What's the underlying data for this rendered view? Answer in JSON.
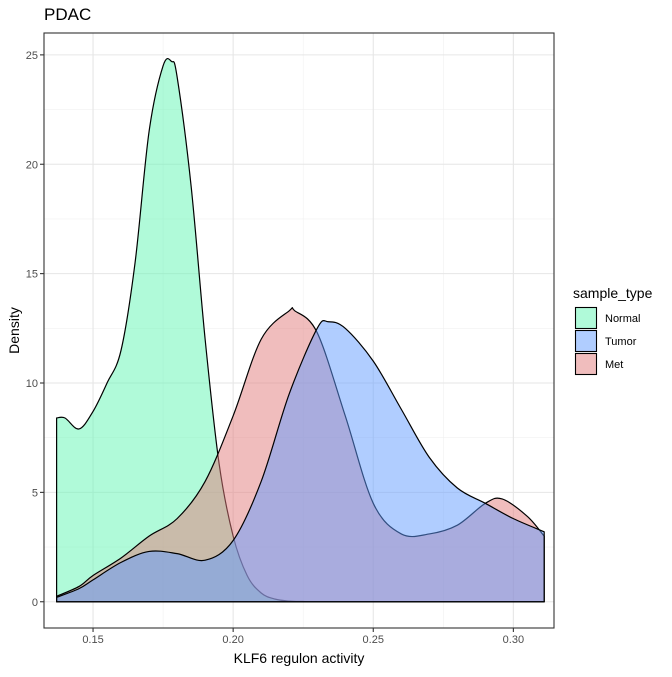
{
  "chart_data": {
    "type": "area",
    "title": "PDAC",
    "xlabel": "KLF6 regulon activity",
    "ylabel": "Density",
    "xlim": [
      0.1325,
      0.3145
    ],
    "ylim": [
      -1.2,
      26.0
    ],
    "x_ticks": [
      0.15,
      0.2,
      0.25,
      0.3
    ],
    "x_tick_labels": [
      "0.15",
      "0.20",
      "0.25",
      "0.30"
    ],
    "y_ticks": [
      0,
      5,
      10,
      15,
      20,
      25
    ],
    "y_tick_labels": [
      "0",
      "5",
      "10",
      "15",
      "20",
      "25"
    ],
    "grid": true,
    "legend": {
      "title": "sample_type",
      "position": "right"
    },
    "series": [
      {
        "name": "Normal",
        "color": "#61F5B4",
        "x": [
          0.137,
          0.14,
          0.145,
          0.15,
          0.155,
          0.16,
          0.165,
          0.17,
          0.175,
          0.178,
          0.18,
          0.185,
          0.19,
          0.195,
          0.2,
          0.205,
          0.21,
          0.215,
          0.22,
          0.225,
          0.23,
          0.24,
          0.25,
          0.311
        ],
        "y": [
          8.4,
          8.4,
          7.9,
          8.7,
          10.0,
          11.5,
          15.5,
          21.5,
          24.5,
          24.7,
          24.0,
          19.0,
          12.0,
          6.3,
          3.0,
          1.2,
          0.4,
          0.12,
          0.03,
          0.01,
          0.0,
          0.0,
          0.0,
          0.0
        ]
      },
      {
        "name": "Tumor",
        "color": "#619CFF",
        "x": [
          0.137,
          0.145,
          0.15,
          0.16,
          0.17,
          0.18,
          0.19,
          0.2,
          0.21,
          0.22,
          0.23,
          0.234,
          0.24,
          0.25,
          0.26,
          0.27,
          0.28,
          0.29,
          0.3,
          0.311
        ],
        "y": [
          0.2,
          0.6,
          1.0,
          1.8,
          2.3,
          2.2,
          1.9,
          2.8,
          5.5,
          9.5,
          12.5,
          12.8,
          12.5,
          11.0,
          8.8,
          6.6,
          5.2,
          4.5,
          3.8,
          3.2
        ]
      },
      {
        "name": "Met",
        "color": "#E17C7C",
        "x": [
          0.137,
          0.145,
          0.15,
          0.16,
          0.17,
          0.18,
          0.19,
          0.2,
          0.21,
          0.22,
          0.222,
          0.23,
          0.24,
          0.25,
          0.26,
          0.27,
          0.28,
          0.29,
          0.296,
          0.305,
          0.311
        ],
        "y": [
          0.25,
          0.7,
          1.2,
          2.0,
          3.0,
          3.8,
          5.5,
          8.5,
          12.0,
          13.3,
          13.3,
          12.3,
          8.5,
          4.5,
          3.1,
          3.1,
          3.5,
          4.5,
          4.7,
          3.9,
          3.0
        ]
      }
    ]
  }
}
